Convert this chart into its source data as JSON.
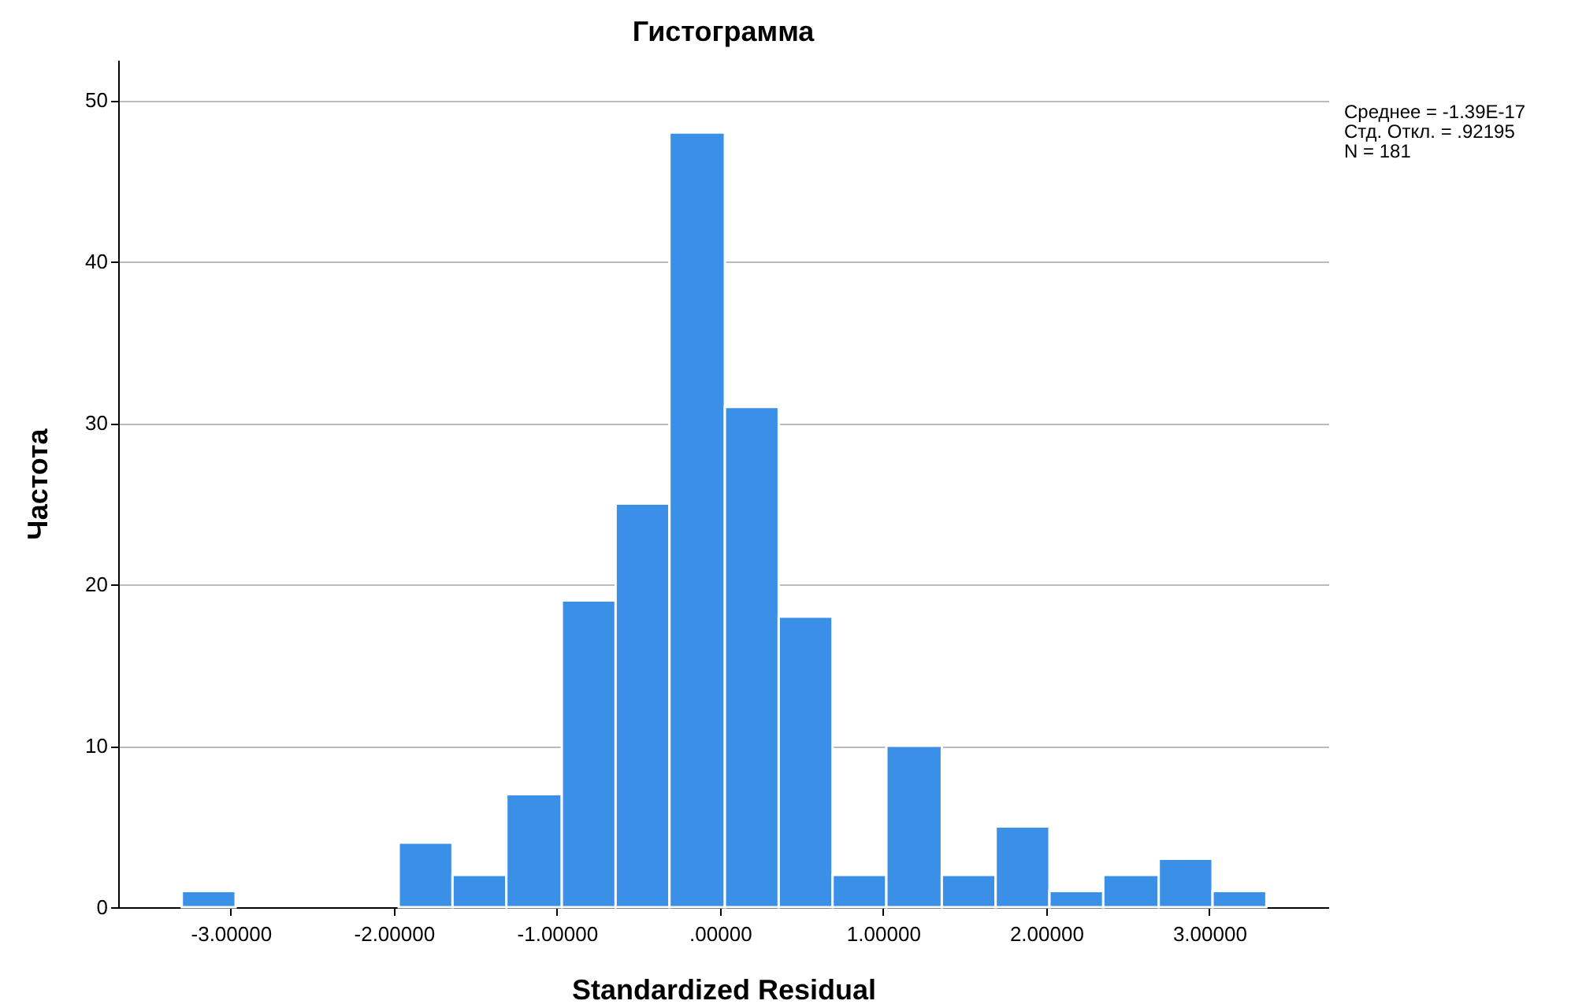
{
  "chart_data": {
    "type": "histogram",
    "title": "Гистограмма",
    "xlabel": "Standardized Residual",
    "ylabel": "Частота",
    "bins": [
      -3.3,
      -2.97,
      -1.97,
      -1.64,
      -1.31,
      -0.97,
      -0.64,
      -0.31,
      0.03,
      0.36,
      0.69,
      1.02,
      1.36,
      1.69,
      2.02,
      2.35,
      2.69,
      3.02,
      3.35
    ],
    "values": [
      1,
      0,
      4,
      2,
      7,
      19,
      25,
      48,
      31,
      18,
      2,
      10,
      2,
      5,
      1,
      2,
      3,
      1
    ],
    "color": "#3a8fe6",
    "xlim": [
      -3.69,
      3.73
    ],
    "xticks": [
      {
        "value": -3,
        "label": "-3.00000"
      },
      {
        "value": -2,
        "label": "-2.00000"
      },
      {
        "value": -1,
        "label": "-1.00000"
      },
      {
        "value": 0,
        "label": ".00000"
      },
      {
        "value": 1,
        "label": "1.00000"
      },
      {
        "value": 2,
        "label": "2.00000"
      },
      {
        "value": 3,
        "label": "3.00000"
      }
    ],
    "ylim": [
      0,
      52.5
    ],
    "yticks": [
      0,
      10,
      20,
      30,
      40,
      50
    ],
    "grid": "y",
    "annotations": [
      "Среднее = -1.39E-17",
      " Стд. Откл. = .92195",
      "N = 181"
    ]
  }
}
